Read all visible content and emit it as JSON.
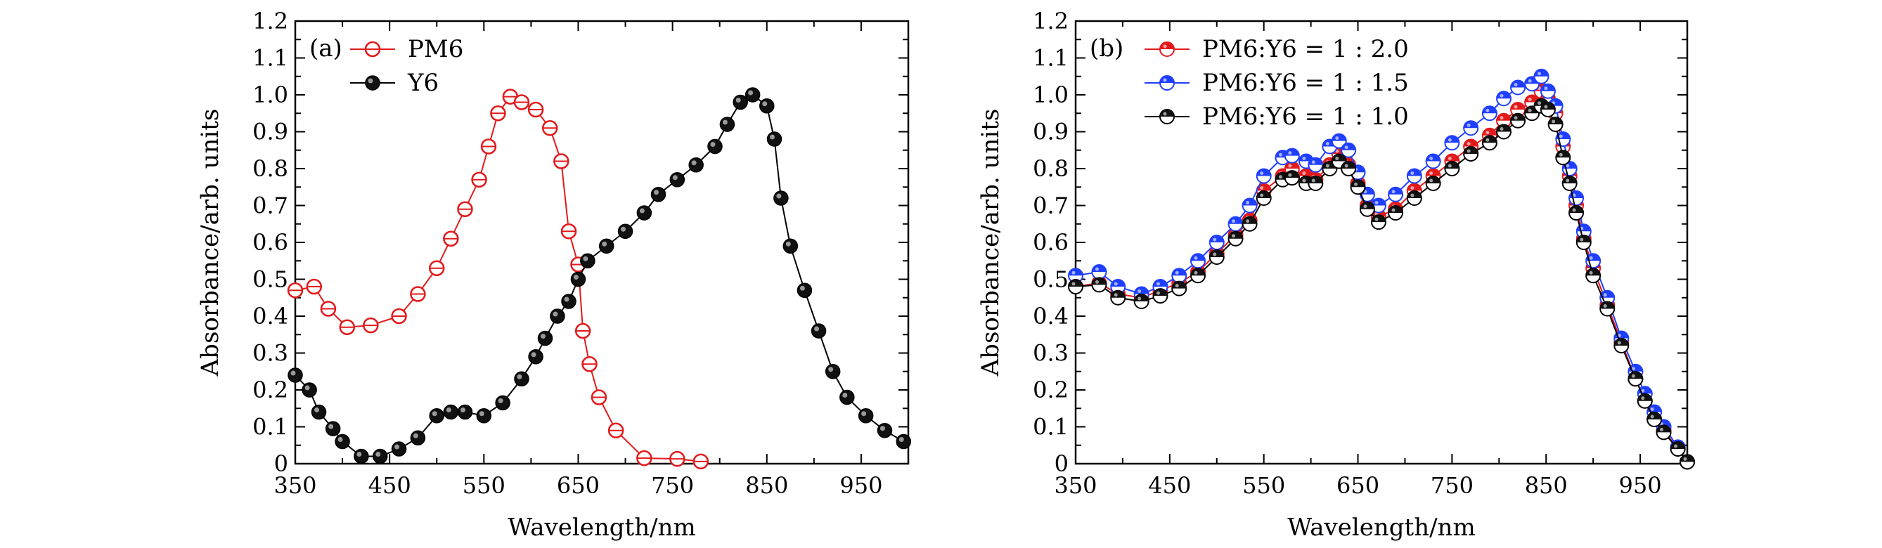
{
  "chart_data": [
    {
      "type": "line",
      "panel_label": "(a)",
      "xlabel": "Wavelength/nm",
      "ylabel": "Absorbance/arb. units",
      "xlim": [
        350,
        1000
      ],
      "ylim": [
        0,
        1.2
      ],
      "xticks": [
        350,
        450,
        550,
        650,
        750,
        850,
        950
      ],
      "yticks": [
        0,
        0.1,
        0.2,
        0.3,
        0.4,
        0.5,
        0.6,
        0.7,
        0.8,
        0.9,
        1.0,
        1.1,
        1.2
      ],
      "ytick_labels": [
        "0",
        "0.1",
        "0.2",
        "0.3",
        "0.4",
        "0.5",
        "0.6",
        "0.7",
        "0.8",
        "0.9",
        "1.0",
        "1.1",
        "1.2"
      ],
      "legend_position": "top-left",
      "series": [
        {
          "name": "PM6",
          "color": "#e31a1c",
          "marker": "open-circle",
          "x": [
            350,
            370,
            385,
            405,
            430,
            460,
            480,
            500,
            515,
            530,
            545,
            555,
            565,
            578,
            590,
            605,
            620,
            632,
            640,
            650,
            655,
            662,
            672,
            690,
            720,
            755,
            780
          ],
          "y": [
            0.47,
            0.48,
            0.42,
            0.37,
            0.375,
            0.4,
            0.46,
            0.53,
            0.61,
            0.69,
            0.77,
            0.86,
            0.95,
            0.995,
            0.98,
            0.96,
            0.91,
            0.82,
            0.63,
            0.54,
            0.36,
            0.27,
            0.18,
            0.09,
            0.015,
            0.013,
            0.006
          ]
        },
        {
          "name": "Y6",
          "color": "#000000",
          "marker": "filled-circle",
          "x": [
            350,
            365,
            375,
            390,
            400,
            420,
            440,
            460,
            480,
            500,
            515,
            530,
            550,
            570,
            590,
            605,
            615,
            628,
            640,
            650,
            660,
            680,
            700,
            720,
            735,
            755,
            775,
            795,
            808,
            822,
            835,
            850,
            858,
            865,
            875,
            890,
            905,
            920,
            935,
            955,
            975,
            995
          ],
          "y": [
            0.24,
            0.2,
            0.14,
            0.095,
            0.06,
            0.02,
            0.02,
            0.04,
            0.07,
            0.13,
            0.14,
            0.14,
            0.13,
            0.165,
            0.23,
            0.29,
            0.34,
            0.4,
            0.44,
            0.5,
            0.55,
            0.59,
            0.63,
            0.68,
            0.73,
            0.77,
            0.81,
            0.86,
            0.92,
            0.98,
            1.0,
            0.97,
            0.88,
            0.72,
            0.59,
            0.47,
            0.36,
            0.25,
            0.18,
            0.13,
            0.09,
            0.06
          ]
        }
      ]
    },
    {
      "type": "line",
      "panel_label": "(b)",
      "xlabel": "Wavelength/nm",
      "ylabel": "Absorbance/arb. units",
      "xlim": [
        350,
        1000
      ],
      "ylim": [
        0,
        1.2
      ],
      "xticks": [
        350,
        450,
        550,
        650,
        750,
        850,
        950
      ],
      "yticks": [
        0,
        0.1,
        0.2,
        0.3,
        0.4,
        0.5,
        0.6,
        0.7,
        0.8,
        0.9,
        1.0,
        1.1,
        1.2
      ],
      "ytick_labels": [
        "0",
        "0.1",
        "0.2",
        "0.3",
        "0.4",
        "0.5",
        "0.6",
        "0.7",
        "0.8",
        "0.9",
        "1.0",
        "1.1",
        "1.2"
      ],
      "legend_position": "top-left",
      "series": [
        {
          "name": "PM6:Y6 = 1 : 2.0",
          "color": "#e31a1c",
          "marker": "half-filled-circle",
          "x": [
            350,
            375,
            395,
            420,
            440,
            460,
            480,
            500,
            520,
            535,
            550,
            570,
            580,
            595,
            605,
            620,
            630,
            640,
            650,
            660,
            672,
            690,
            710,
            730,
            750,
            770,
            790,
            805,
            820,
            835,
            845,
            852,
            860,
            868,
            875,
            882,
            890,
            900,
            915,
            930,
            945,
            955,
            965,
            975,
            990,
            1000
          ],
          "y": [
            0.48,
            0.49,
            0.46,
            0.45,
            0.47,
            0.49,
            0.52,
            0.57,
            0.62,
            0.66,
            0.74,
            0.78,
            0.8,
            0.78,
            0.77,
            0.81,
            0.84,
            0.81,
            0.76,
            0.7,
            0.67,
            0.69,
            0.74,
            0.78,
            0.82,
            0.86,
            0.89,
            0.93,
            0.96,
            0.98,
            1.01,
            0.99,
            0.95,
            0.86,
            0.78,
            0.7,
            0.61,
            0.53,
            0.43,
            0.33,
            0.23,
            0.17,
            0.12,
            0.09,
            0.04,
            0.005
          ]
        },
        {
          "name": "PM6:Y6 = 1 : 1.5",
          "color": "#1f3fff",
          "marker": "half-filled-circle",
          "x": [
            350,
            375,
            395,
            420,
            440,
            460,
            480,
            500,
            520,
            535,
            550,
            570,
            580,
            595,
            605,
            620,
            630,
            640,
            650,
            660,
            672,
            690,
            710,
            730,
            750,
            770,
            790,
            805,
            820,
            835,
            845,
            852,
            860,
            868,
            875,
            882,
            890,
            900,
            915,
            930,
            945,
            955,
            965,
            975,
            990,
            1000
          ],
          "y": [
            0.51,
            0.52,
            0.48,
            0.46,
            0.48,
            0.51,
            0.55,
            0.6,
            0.65,
            0.7,
            0.78,
            0.83,
            0.835,
            0.82,
            0.81,
            0.86,
            0.875,
            0.85,
            0.79,
            0.73,
            0.7,
            0.73,
            0.78,
            0.82,
            0.87,
            0.91,
            0.95,
            0.99,
            1.02,
            1.03,
            1.05,
            1.01,
            0.97,
            0.88,
            0.8,
            0.72,
            0.63,
            0.55,
            0.45,
            0.34,
            0.25,
            0.19,
            0.14,
            0.1,
            0.045,
            0.005
          ]
        },
        {
          "name": "PM6:Y6 = 1 : 1.0",
          "color": "#000000",
          "marker": "half-filled-circle",
          "x": [
            350,
            375,
            395,
            420,
            440,
            460,
            480,
            500,
            520,
            535,
            550,
            570,
            580,
            595,
            605,
            620,
            630,
            640,
            650,
            660,
            672,
            690,
            710,
            730,
            750,
            770,
            790,
            805,
            820,
            835,
            845,
            852,
            860,
            868,
            875,
            882,
            890,
            900,
            915,
            930,
            945,
            955,
            965,
            975,
            990,
            1000
          ],
          "y": [
            0.48,
            0.485,
            0.45,
            0.44,
            0.455,
            0.475,
            0.51,
            0.56,
            0.61,
            0.65,
            0.72,
            0.77,
            0.775,
            0.76,
            0.76,
            0.8,
            0.82,
            0.8,
            0.75,
            0.69,
            0.655,
            0.68,
            0.72,
            0.76,
            0.8,
            0.84,
            0.87,
            0.9,
            0.93,
            0.95,
            0.97,
            0.96,
            0.92,
            0.83,
            0.76,
            0.68,
            0.6,
            0.51,
            0.42,
            0.32,
            0.23,
            0.17,
            0.12,
            0.085,
            0.04,
            0.005
          ]
        }
      ]
    }
  ]
}
